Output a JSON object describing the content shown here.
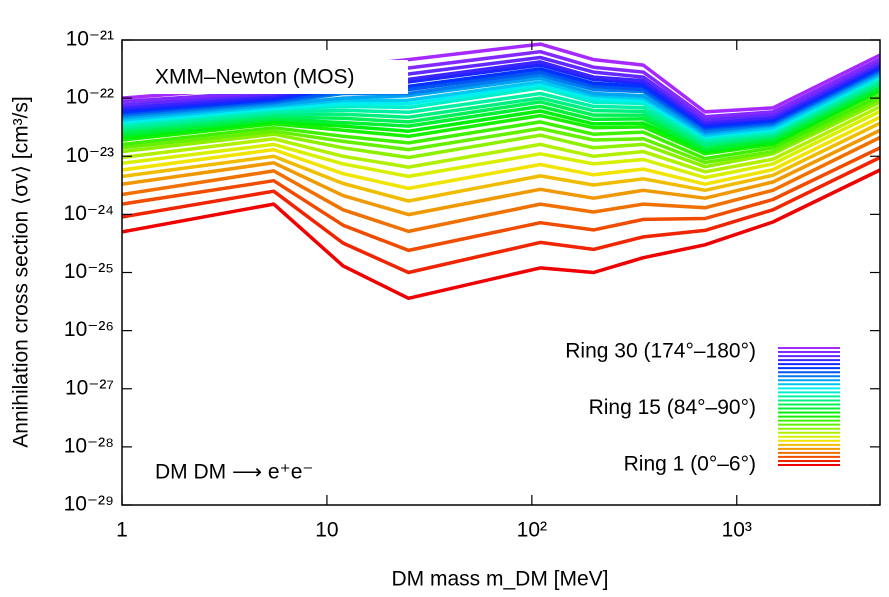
{
  "chart_data": {
    "type": "line",
    "xlabel": "DM mass m_DM [MeV]",
    "ylabel": "Annihilation cross section ⟨σv⟩ [cm³/s]",
    "annotations": [
      "XMM–Newton (MOS)",
      "DM DM ⟶ e⁺e⁻"
    ],
    "xscale": "log",
    "yscale": "log",
    "xlim": [
      1,
      5000
    ],
    "ylim": [
      1e-29,
      1e-21
    ],
    "xticks": [
      1,
      10,
      {
        "value": 100,
        "label": "10²"
      },
      {
        "value": 1000,
        "label": "10³"
      }
    ],
    "yticks": [
      {
        "value": 1e-29,
        "label": "10⁻²⁹"
      },
      {
        "value": 1e-28,
        "label": "10⁻²⁸"
      },
      {
        "value": 1e-27,
        "label": "10⁻²⁷"
      },
      {
        "value": 1e-26,
        "label": "10⁻²⁶"
      },
      {
        "value": 1e-25,
        "label": "10⁻²⁵"
      },
      {
        "value": 1e-24,
        "label": "10⁻²⁴"
      },
      {
        "value": 1e-23,
        "label": "10⁻²³"
      },
      {
        "value": 1e-22,
        "label": "10⁻²²"
      },
      {
        "value": 1e-21,
        "label": "10⁻²¹"
      }
    ],
    "legend": "lower right",
    "x": [
      1,
      5.5,
      12,
      25,
      110,
      200,
      350,
      700,
      1500,
      5000
    ],
    "series": [
      {
        "name": "Ring 1 (0°–6°)",
        "color": "hsl(0,100%,47%)",
        "values": [
          5e-25,
          1.5e-24,
          1.3e-25,
          3.6e-26,
          1.2e-25,
          1e-25,
          1.8e-25,
          3e-25,
          7.4e-25,
          5.8e-24
        ]
      },
      {
        "color": "hsl(9,100%,47%)",
        "values": [
          9e-25,
          2.5e-24,
          3.2e-25,
          1e-25,
          3.3e-25,
          2.5e-25,
          4.1e-25,
          5.3e-25,
          1.2e-24,
          9.5e-24
        ]
      },
      {
        "color": "hsl(19,100%,47%)",
        "values": [
          1.5e-24,
          3.8e-24,
          6.5e-25,
          2.4e-25,
          7.2e-25,
          5.4e-25,
          8.2e-25,
          8.5e-25,
          1.8e-24,
          1.4e-23
        ]
      },
      {
        "color": "hsl(28,100%,47%)",
        "values": [
          2.2e-24,
          5.6e-24,
          1.2e-24,
          5.1e-25,
          1.5e-24,
          1.1e-24,
          1.5e-24,
          1.3e-24,
          2.6e-24,
          2.1e-23
        ]
      },
      {
        "color": "hsl(38,100%,47%)",
        "values": [
          3.3e-24,
          7.7e-24,
          2.1e-24,
          9.9e-25,
          2.7e-24,
          1.9e-24,
          2.6e-24,
          1.9e-24,
          3.6e-24,
          2.8e-23
        ]
      },
      {
        "color": "hsl(47,100%,47%)",
        "values": [
          4.5e-24,
          1e-23,
          3.4e-24,
          1.7e-24,
          4.6e-24,
          3.2e-24,
          4.1e-24,
          2.6e-24,
          4.7e-24,
          3.7e-23
        ]
      },
      {
        "color": "hsl(57,100%,47%)",
        "values": [
          5.8e-24,
          1.3e-23,
          5e-24,
          2.8e-24,
          7.2e-24,
          4.8e-24,
          6e-24,
          3.3e-24,
          5.9e-24,
          4.7e-23
        ]
      },
      {
        "color": "hsl(66,100%,47%)",
        "values": [
          7.6e-24,
          1.6e-23,
          7.4e-24,
          4.5e-24,
          1.1e-23,
          7.4e-24,
          8.8e-24,
          4.3e-24,
          7.4e-24,
          5.9e-23
        ]
      },
      {
        "color": "hsl(76,100%,47%)",
        "values": [
          9.5e-24,
          2e-23,
          1e-23,
          6.5e-24,
          1.6e-23,
          1e-23,
          1.2e-23,
          5.4e-24,
          8.9e-24,
          7.1e-23
        ]
      },
      {
        "color": "hsl(85,100%,47%)",
        "values": [
          1.2e-23,
          2.4e-23,
          1.4e-23,
          9.5e-24,
          2.3e-23,
          1.4e-23,
          1.6e-23,
          6.6e-24,
          1.1e-23,
          8.5e-23
        ]
      },
      {
        "color": "hsl(95,100%,47%)",
        "values": [
          1.4e-23,
          2.7e-23,
          1.8e-23,
          1.3e-23,
          3e-23,
          1.9e-23,
          2e-23,
          7.8e-24,
          1.2e-23,
          9.7e-23
        ]
      },
      {
        "color": "hsl(104,100%,47%)",
        "values": [
          1.6e-23,
          3.1e-23,
          2.2e-23,
          1.7e-23,
          3.9e-23,
          2.4e-23,
          2.6e-23,
          9.1e-24,
          1.4e-23,
          1.1e-22
        ]
      },
      {
        "color": "hsl(114,100%,47%)",
        "values": [
          1.9e-23,
          3.6e-23,
          2.8e-23,
          2.2e-23,
          5e-23,
          3.1e-23,
          3.2e-23,
          1.1e-23,
          1.6e-23,
          1.3e-22
        ]
      },
      {
        "color": "hsl(123,100%,47%)",
        "values": [
          2.1e-23,
          3.9e-23,
          3.3e-23,
          2.7e-23,
          6e-23,
          3.6e-23,
          3.7e-23,
          1.2e-23,
          1.7e-23,
          1.4e-22
        ]
      },
      {
        "name": "Ring 15 (84°–90°)",
        "color": "hsl(133,100%,47%)",
        "values": [
          2.3e-23,
          4.3e-23,
          3.8e-23,
          3.3e-23,
          7.2e-23,
          4.3e-23,
          4.4e-23,
          1.3e-23,
          1.9e-23,
          1.5e-22
        ]
      },
      {
        "color": "hsl(142,100%,47%)",
        "values": [
          2.6e-23,
          4.7e-23,
          4.5e-23,
          3.9e-23,
          8.6e-23,
          5.1e-23,
          5.1e-23,
          1.5e-23,
          2.1e-23,
          1.7e-22
        ]
      },
      {
        "color": "hsl(152,100%,47%)",
        "values": [
          2.9e-23,
          5.2e-23,
          5.3e-23,
          4.7e-23,
          1e-22,
          6.1e-23,
          5.9e-23,
          1.6e-23,
          2.3e-23,
          1.8e-22
        ]
      },
      {
        "color": "hsl(161,100%,47%)",
        "values": [
          3.2e-23,
          5.7e-23,
          6.2e-23,
          5.7e-23,
          1.2e-22,
          7.2e-23,
          6.9e-23,
          1.8e-23,
          2.5e-23,
          2e-22
        ]
      },
      {
        "color": "hsl(171,100%,47%)",
        "values": [
          3.6e-23,
          6.3e-23,
          7.2e-23,
          6.9e-23,
          1.5e-22,
          8.5e-23,
          8.1e-23,
          2e-23,
          2.7e-23,
          2.2e-22
        ]
      },
      {
        "color": "hsl(180,100%,47%)",
        "values": [
          3.9e-23,
          6.7e-23,
          8.1e-23,
          8e-23,
          1.7e-22,
          9.6e-23,
          9e-23,
          2.2e-23,
          2.9e-23,
          2.4e-22
        ]
      },
      {
        "color": "hsl(190,100%,47%)",
        "values": [
          4.2e-23,
          7.2e-23,
          9.1e-23,
          9.2e-23,
          1.9e-22,
          1.1e-22,
          1e-22,
          2.3e-23,
          3.1e-23,
          2.5e-22
        ]
      },
      {
        "color": "hsl(199,100%,47%)",
        "values": [
          4.6e-23,
          7.7e-23,
          1e-22,
          1.1e-22,
          2.2e-22,
          1.2e-22,
          1.1e-22,
          2.5e-23,
          3.4e-23,
          2.7e-22
        ]
      },
      {
        "color": "hsl(209,100%,47%)",
        "values": [
          5e-23,
          8.3e-23,
          1.2e-22,
          1.2e-22,
          2.5e-22,
          1.4e-22,
          1.3e-22,
          2.7e-23,
          3.6e-23,
          2.9e-22
        ]
      },
      {
        "color": "hsl(218,100%,47%)",
        "values": [
          5.4e-23,
          8.9e-23,
          1.3e-22,
          1.4e-22,
          2.8e-22,
          1.6e-22,
          1.4e-22,
          3e-23,
          3.8e-23,
          3.1e-22
        ]
      },
      {
        "color": "hsl(228,100%,50%)",
        "values": [
          5.8e-23,
          9.5e-23,
          1.5e-22,
          1.6e-22,
          3.2e-22,
          1.8e-22,
          1.6e-22,
          3.2e-23,
          4.1e-23,
          3.3e-22
        ]
      },
      {
        "color": "hsl(237,100%,55%)",
        "values": [
          6.3e-23,
          1e-22,
          1.6e-22,
          1.9e-22,
          3.7e-22,
          2.1e-22,
          1.8e-22,
          3.5e-23,
          4.4e-23,
          3.6e-22
        ]
      },
      {
        "color": "hsl(246,100%,57%)",
        "values": [
          6.8e-23,
          1.1e-22,
          1.8e-22,
          2.1e-22,
          4.2e-22,
          2.3e-22,
          2e-22,
          3.8e-23,
          4.7e-23,
          3.8e-22
        ]
      },
      {
        "color": "hsl(256,100%,58%)",
        "values": [
          7.6e-23,
          1.2e-22,
          2.2e-22,
          2.6e-22,
          5e-22,
          2.8e-22,
          2.3e-22,
          4.2e-23,
          5.2e-23,
          4.2e-22
        ]
      },
      {
        "color": "hsl(265,100%,58%)",
        "values": [
          8.7e-23,
          1.3e-22,
          2.6e-22,
          3.3e-22,
          6.3e-22,
          3.4e-22,
          2.8e-22,
          4.8e-23,
          5.8e-23,
          4.7e-22
        ]
      },
      {
        "name": "Ring 30 (174°–180°)",
        "color": "hsl(275,100%,58%)",
        "values": [
          1e-22,
          1.6e-22,
          3.5e-22,
          4.6e-22,
          8.5e-22,
          4.6e-22,
          3.7e-22,
          5.8e-23,
          6.8e-23,
          5.5e-22
        ]
      }
    ]
  }
}
